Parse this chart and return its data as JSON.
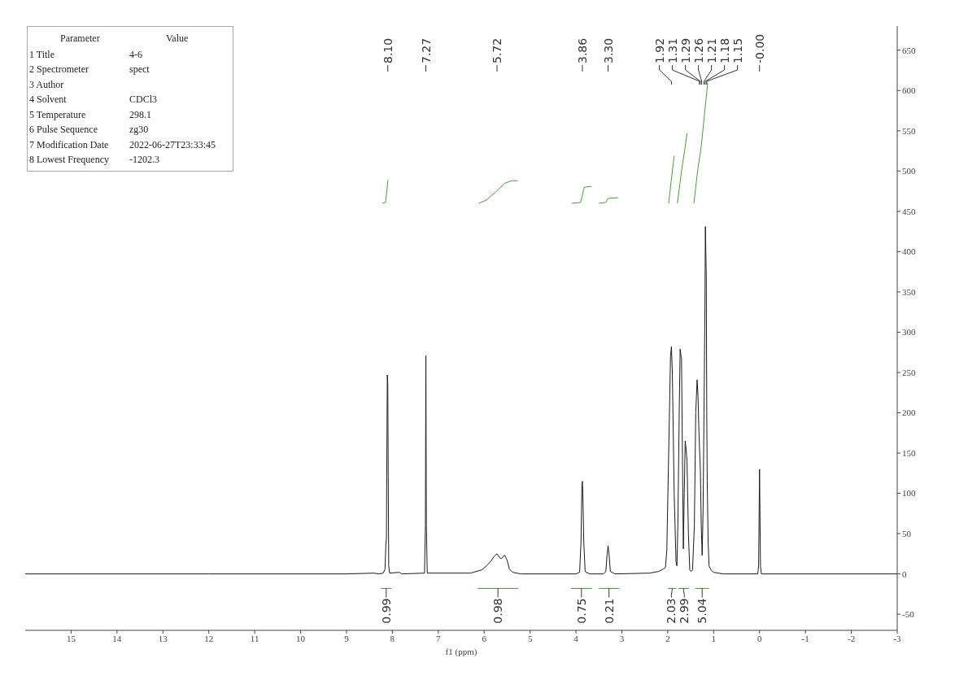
{
  "chart_data": [
    {
      "type": "other",
      "annotations": [
        "Parameter",
        "Value",
        "1 Title",
        "4-6",
        "2 Spectrometer",
        "spect",
        "3 Author",
        null,
        "4 Solvent",
        "CDCl3",
        "5 Temperature",
        "298.1",
        "6 Pulse Sequence",
        "zg30",
        "7 Modification Date",
        "2022-06-27T23:33:45",
        "8 Lowest Frequency",
        "-1202.3"
      ]
    },
    {
      "type": "line",
      "xlabel": "f1 (ppm)",
      "xlim": [
        16,
        -3
      ],
      "xticks": [
        15,
        14,
        13,
        12,
        11,
        10,
        9,
        8,
        7,
        6,
        5,
        4,
        3,
        2,
        1,
        0,
        -1,
        -2,
        -3
      ],
      "ylim": [
        -70,
        680
      ],
      "yticks": [
        -50,
        0,
        50,
        100,
        150,
        200,
        250,
        300,
        350,
        400,
        450,
        500,
        550,
        600,
        650
      ],
      "grid": false,
      "marker": "none",
      "line_style": "solid",
      "series": [
        {
          "type": "line",
          "color": "#1a1a1a",
          "x": [
            16,
            12,
            9,
            8.4,
            8.3,
            8.2,
            8.16,
            8.14,
            8.13,
            8.12,
            8.11,
            8.1,
            8.09,
            8.08,
            8.06,
            7.85,
            7.8,
            7.3,
            7.28,
            7.27,
            7.26,
            7.24,
            6.3,
            6.05,
            5.95,
            5.85,
            5.78,
            5.72,
            5.66,
            5.62,
            5.58,
            5.55,
            5.5,
            5.45,
            5.38,
            5.2,
            4,
            3.92,
            3.89,
            3.87,
            3.86,
            3.85,
            3.83,
            3.8,
            3.7,
            3.4,
            3.35,
            3.32,
            3.3,
            3.28,
            3.25,
            3.15,
            2.4,
            2.2,
            2.1,
            2.05,
            2.02,
            1.98,
            1.94,
            1.92,
            1.9,
            1.86,
            1.82,
            1.8,
            1.78,
            1.75,
            1.73,
            1.71,
            1.7,
            1.68,
            1.66,
            1.64,
            1.62,
            1.6,
            1.58,
            1.55,
            1.52,
            1.49,
            1.46,
            1.42,
            1.39,
            1.36,
            1.34,
            1.32,
            1.29,
            1.27,
            1.25,
            1.23,
            1.21,
            1.19,
            1.18,
            1.17,
            1.16,
            1.15,
            1.14,
            1.12,
            1.1,
            1.06,
            1,
            0.8,
            0.04,
            0.02,
            0,
            -0.02,
            -0.04,
            -3
          ],
          "values": [
            0,
            0,
            0,
            1,
            0,
            1,
            6,
            40,
            42,
            150,
            247,
            235,
            120,
            10,
            1,
            2,
            0,
            1,
            60,
            271,
            60,
            1,
            1,
            5,
            10,
            16,
            22,
            25,
            20,
            19,
            22,
            23,
            17,
            6,
            2,
            0,
            0,
            2,
            40,
            110,
            115,
            100,
            40,
            3,
            0,
            0,
            3,
            25,
            35,
            25,
            3,
            0,
            1,
            3,
            6,
            8,
            30,
            150,
            270,
            282,
            250,
            100,
            15,
            10,
            60,
            200,
            279,
            270,
            268,
            150,
            31,
            100,
            165,
            155,
            140,
            50,
            5,
            3,
            5,
            60,
            200,
            241,
            220,
            175,
            130,
            60,
            23,
            80,
            200,
            330,
            431,
            400,
            367,
            200,
            115,
            40,
            10,
            5,
            2,
            0,
            0,
            10,
            130,
            10,
            0,
            0
          ]
        },
        {
          "type": "line",
          "color": "#4a9a3a",
          "x": [
            8.22,
            8.15,
            8.12,
            8.1,
            8.09
          ],
          "values": [
            460,
            461,
            475,
            488,
            489
          ]
        },
        {
          "type": "line",
          "color": "#4a9a3a",
          "x": [
            6.12,
            5.95,
            5.75,
            5.55,
            5.4,
            5.27
          ],
          "values": [
            460,
            464,
            474,
            485,
            488,
            488
          ]
        },
        {
          "type": "line",
          "color": "#4a9a3a",
          "x": [
            4.09,
            3.9,
            3.86,
            3.82,
            3.66
          ],
          "values": [
            460,
            461,
            470,
            480,
            481
          ]
        },
        {
          "type": "line",
          "color": "#4a9a3a",
          "x": [
            3.5,
            3.35,
            3.3,
            3.08
          ],
          "values": [
            460,
            461,
            466,
            467
          ]
        },
        {
          "type": "line",
          "color": "#4a9a3a",
          "x": [
            1.98,
            1.92,
            1.86
          ],
          "values": [
            460,
            490,
            519
          ]
        },
        {
          "type": "line",
          "color": "#4a9a3a",
          "x": [
            1.79,
            1.7,
            1.62,
            1.58
          ],
          "values": [
            460,
            500,
            530,
            547
          ]
        },
        {
          "type": "line",
          "color": "#4a9a3a",
          "x": [
            1.43,
            1.35,
            1.27,
            1.2,
            1.13
          ],
          "values": [
            460,
            500,
            531,
            570,
            609
          ]
        },
        {
          "type": "line",
          "color": "#4a9a3a",
          "x": [
            8.25,
            8.02
          ],
          "values": [
            -18,
            -18
          ]
        },
        {
          "type": "line",
          "color": "#4a9a3a",
          "x": [
            6.14,
            5.26
          ],
          "values": [
            -18,
            -18
          ]
        },
        {
          "type": "line",
          "color": "#4a9a3a",
          "x": [
            4.11,
            3.65
          ],
          "values": [
            -18,
            -18
          ]
        },
        {
          "type": "line",
          "color": "#4a9a3a",
          "x": [
            3.5,
            3.06
          ],
          "values": [
            -18,
            -18
          ]
        },
        {
          "type": "line",
          "color": "#4a9a3a",
          "x": [
            2.0,
            1.81
          ],
          "values": [
            -18,
            -18
          ]
        },
        {
          "type": "line",
          "color": "#4a9a3a",
          "x": [
            1.77,
            1.54
          ],
          "values": [
            -18,
            -18
          ]
        },
        {
          "type": "line",
          "color": "#4a9a3a",
          "x": [
            1.4,
            1.1
          ],
          "values": [
            -18,
            -18
          ]
        }
      ],
      "annotations": [
        {
          "text": "8.10",
          "x": 8.1
        },
        {
          "text": "7.27",
          "x": 7.27
        },
        {
          "text": "5.72",
          "x": 5.72
        },
        {
          "text": "3.86",
          "x": 3.86
        },
        {
          "text": "3.30",
          "x": 3.3
        },
        {
          "text": "1.92",
          "x": 1.92
        },
        {
          "text": "1.31",
          "x": 1.31
        },
        {
          "text": "1.29",
          "x": 1.29
        },
        {
          "text": "1.26",
          "x": 1.26
        },
        {
          "text": "1.21",
          "x": 1.21
        },
        {
          "text": "1.18",
          "x": 1.18
        },
        {
          "text": "1.15",
          "x": 1.15
        },
        {
          "text": "-0.00",
          "x": 0
        },
        {
          "text": "0.99",
          "x": 8.135,
          "y": -18
        },
        {
          "text": "0.98",
          "x": 5.7,
          "y": -18
        },
        {
          "text": "0.75",
          "x": 3.88,
          "y": -18
        },
        {
          "text": "0.21",
          "x": 3.28,
          "y": -18
        },
        {
          "text": "2.03",
          "x": 1.905,
          "y": -18
        },
        {
          "text": "2.99",
          "x": 1.655,
          "y": -18
        },
        {
          "text": "5.04",
          "x": 1.25,
          "y": -18
        }
      ]
    }
  ]
}
